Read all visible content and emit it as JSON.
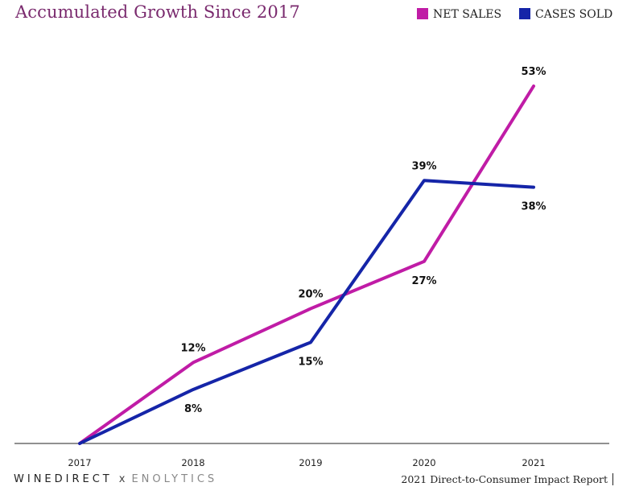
{
  "title": "Accumulated Growth Since 2017",
  "legend": [
    {
      "label": "NET SALES",
      "color": "#c01ca6"
    },
    {
      "label": "CASES SOLD",
      "color": "#1525a8"
    }
  ],
  "footer": {
    "brand_left": "WINEDIRECT",
    "separator": "x",
    "brand_right": "ENOLYTICS",
    "report": "2021 Direct-to-Consumer Impact Report"
  },
  "chart_data": {
    "type": "line",
    "title": "Accumulated Growth Since 2017",
    "x": [
      "2017",
      "2018",
      "2019",
      "2020",
      "2021"
    ],
    "series": [
      {
        "name": "NET SALES",
        "color": "#c01ca6",
        "values": [
          0,
          12,
          20,
          27,
          53
        ],
        "labels": [
          "",
          "12%",
          "20%",
          "27%",
          "53%"
        ]
      },
      {
        "name": "CASES SOLD",
        "color": "#1525a8",
        "values": [
          0,
          8,
          15,
          39,
          38
        ],
        "labels": [
          "",
          "8%",
          "15%",
          "39%",
          "38%"
        ]
      }
    ],
    "ylim": [
      0,
      53
    ],
    "xlabel": "",
    "ylabel": "",
    "grid": false,
    "legend_position": "top-right"
  }
}
